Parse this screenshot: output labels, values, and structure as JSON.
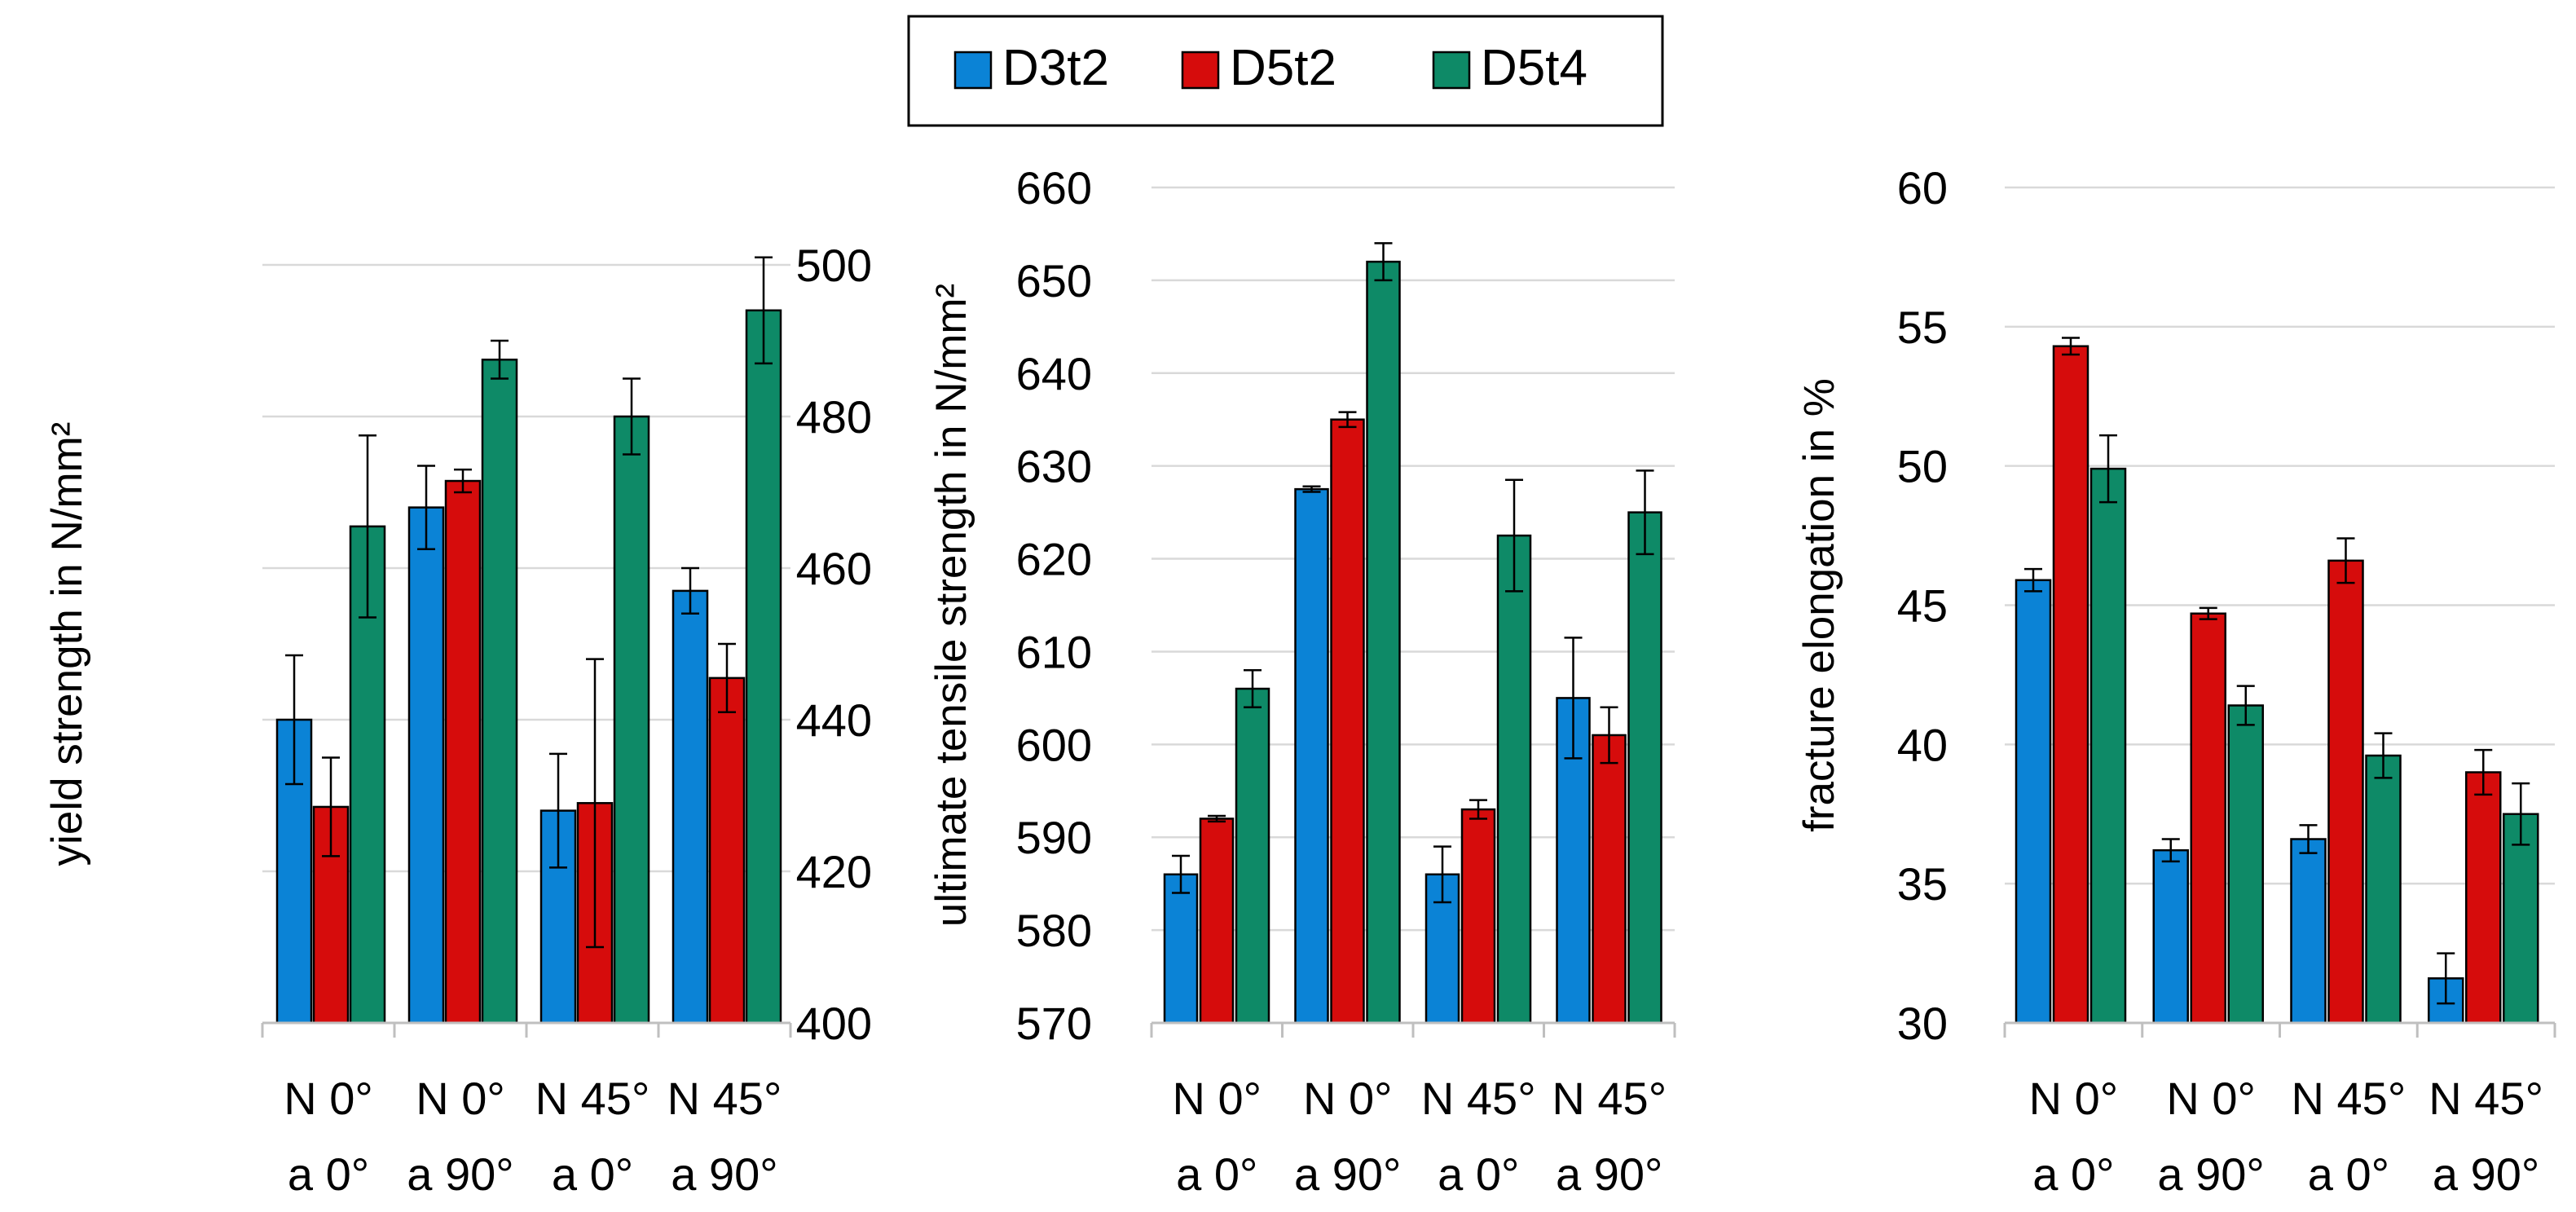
{
  "legend": [
    {
      "name": "D3t2",
      "color": "#0b83d6"
    },
    {
      "name": "D5t2",
      "color": "#d60c0c"
    },
    {
      "name": "D5t4",
      "color": "#0e8a67"
    }
  ],
  "chart_data": [
    {
      "type": "bar",
      "title": "",
      "xlabel": "",
      "ylabel": "yield strength in N/mm²",
      "categories": [
        [
          "N 0°",
          "a 0°"
        ],
        [
          "N 0°",
          "a 90°"
        ],
        [
          "N 45°",
          "a 0°"
        ],
        [
          "N 45°",
          "a 90°"
        ]
      ],
      "ylim": [
        400,
        500
      ],
      "yticks": [
        400,
        420,
        440,
        460,
        480,
        500
      ],
      "grid": true,
      "series": [
        {
          "name": "D3t2",
          "values": [
            440,
            468,
            428,
            457
          ],
          "errors": [
            8.5,
            5.5,
            7.5,
            3
          ]
        },
        {
          "name": "D5t2",
          "values": [
            428.5,
            471.5,
            429,
            445.5
          ],
          "errors": [
            6.5,
            1.5,
            19,
            4.5
          ]
        },
        {
          "name": "D5t4",
          "values": [
            465.5,
            487.5,
            480,
            494
          ],
          "errors": [
            12,
            2.5,
            5,
            7
          ]
        }
      ]
    },
    {
      "type": "bar",
      "title": "",
      "xlabel": "",
      "ylabel": "ultimate tensile strength in N/mm²",
      "categories": [
        [
          "N 0°",
          "a 0°"
        ],
        [
          "N 0°",
          "a 90°"
        ],
        [
          "N 45°",
          "a 0°"
        ],
        [
          "N 45°",
          "a 90°"
        ]
      ],
      "ylim": [
        570,
        660
      ],
      "yticks": [
        570,
        580,
        590,
        600,
        610,
        620,
        630,
        640,
        650,
        660
      ],
      "grid": true,
      "series": [
        {
          "name": "D3t2",
          "values": [
            586,
            627.5,
            586,
            605
          ],
          "errors": [
            2,
            0.3,
            3,
            6.5
          ]
        },
        {
          "name": "D5t2",
          "values": [
            592,
            635,
            593,
            601
          ],
          "errors": [
            0.3,
            0.8,
            1,
            3
          ]
        },
        {
          "name": "D5t4",
          "values": [
            606,
            652,
            622.5,
            625
          ],
          "errors": [
            2,
            2,
            6,
            4.5
          ]
        }
      ]
    },
    {
      "type": "bar",
      "title": "",
      "xlabel": "",
      "ylabel": "fracture elongation in %",
      "categories": [
        [
          "N 0°",
          "a 0°"
        ],
        [
          "N 0°",
          "a 90°"
        ],
        [
          "N 45°",
          "a 0°"
        ],
        [
          "N 45°",
          "a 90°"
        ]
      ],
      "ylim": [
        30,
        60
      ],
      "yticks": [
        30,
        35,
        40,
        45,
        50,
        55,
        60
      ],
      "grid": true,
      "series": [
        {
          "name": "D3t2",
          "values": [
            45.9,
            36.2,
            36.6,
            31.6
          ],
          "errors": [
            0.4,
            0.4,
            0.5,
            0.9
          ]
        },
        {
          "name": "D5t2",
          "values": [
            54.3,
            44.7,
            46.6,
            39
          ],
          "errors": [
            0.3,
            0.2,
            0.8,
            0.8
          ]
        },
        {
          "name": "D5t4",
          "values": [
            49.9,
            41.4,
            39.6,
            37.5
          ],
          "errors": [
            1.2,
            0.7,
            0.8,
            1.1
          ]
        }
      ]
    }
  ]
}
